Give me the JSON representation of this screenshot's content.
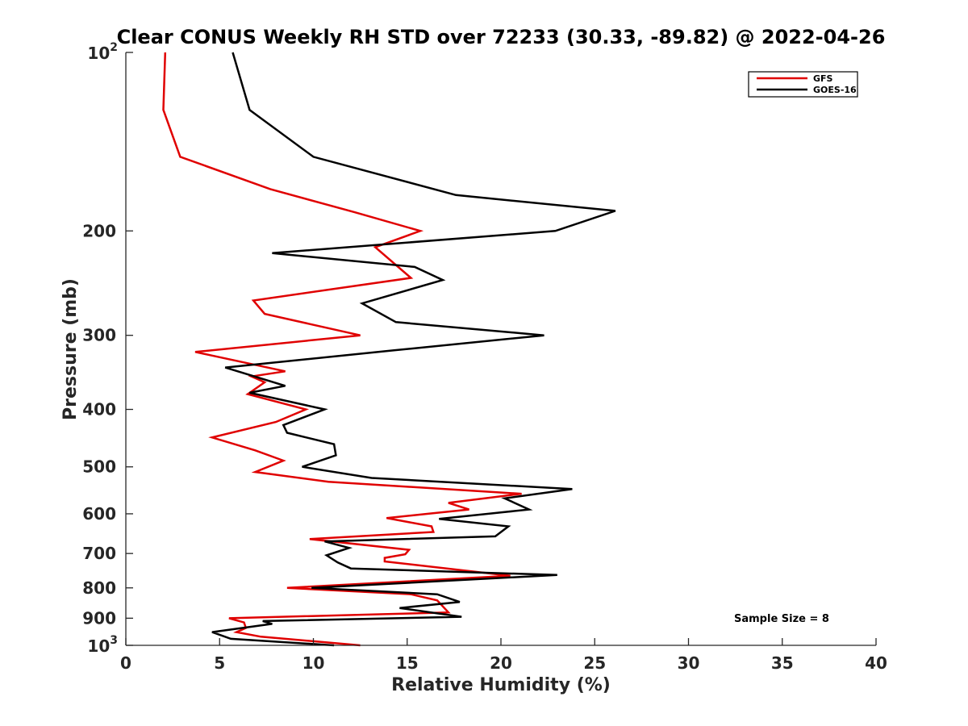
{
  "chart_data": {
    "type": "line",
    "title": "Clear CONUS Weekly RH STD over 72233 (30.33, -89.82) @ 2022-04-26",
    "xlabel": "Relative Humidity (%)",
    "ylabel": "Pressure (mb)",
    "xlim": [
      0,
      40
    ],
    "ylim": [
      100,
      1000
    ],
    "yscale": "log",
    "yreversed": true,
    "xticks": [
      0,
      5,
      10,
      15,
      20,
      25,
      30,
      35,
      40
    ],
    "xtick_labels": [
      "0",
      "5",
      "10",
      "15",
      "20",
      "25",
      "30",
      "35",
      "40"
    ],
    "yticks": [
      100,
      200,
      300,
      400,
      500,
      600,
      700,
      800,
      900,
      1000
    ],
    "ytick_labels": [
      {
        "base": "10",
        "exp": "2"
      },
      {
        "base": "200"
      },
      {
        "base": "300"
      },
      {
        "base": "400"
      },
      {
        "base": "500"
      },
      {
        "base": "600"
      },
      {
        "base": "700"
      },
      {
        "base": "800"
      },
      {
        "base": "900"
      },
      {
        "base": "10",
        "exp": "3"
      }
    ],
    "grid": false,
    "legend_position": "top-right",
    "annotation": "Sample Size = 8",
    "series": [
      {
        "name": "GFS",
        "color": "#e00000",
        "points": [
          [
            2.1,
            100
          ],
          [
            2.0,
            125
          ],
          [
            2.9,
            150
          ],
          [
            7.7,
            170
          ],
          [
            12.2,
            186
          ],
          [
            15.7,
            200
          ],
          [
            13.3,
            213
          ],
          [
            15.2,
            240
          ],
          [
            6.8,
            262
          ],
          [
            7.4,
            276
          ],
          [
            12.5,
            300
          ],
          [
            3.7,
            320
          ],
          [
            8.5,
            345
          ],
          [
            6.7,
            352
          ],
          [
            7.4,
            360
          ],
          [
            6.5,
            377
          ],
          [
            9.6,
            400
          ],
          [
            8.0,
            420
          ],
          [
            4.6,
            446
          ],
          [
            6.9,
            469
          ],
          [
            8.4,
            488
          ],
          [
            6.9,
            510
          ],
          [
            10.8,
            530
          ],
          [
            21.1,
            555
          ],
          [
            17.2,
            575
          ],
          [
            18.3,
            590
          ],
          [
            13.9,
            610
          ],
          [
            16.3,
            630
          ],
          [
            16.4,
            644
          ],
          [
            9.8,
            662
          ],
          [
            15.1,
            690
          ],
          [
            14.9,
            702
          ],
          [
            13.8,
            712
          ],
          [
            13.8,
            722
          ],
          [
            20.5,
            763
          ],
          [
            8.6,
            800
          ],
          [
            15.2,
            820
          ],
          [
            16.6,
            840
          ],
          [
            17.2,
            880
          ],
          [
            5.5,
            900
          ],
          [
            6.3,
            915
          ],
          [
            6.4,
            935
          ],
          [
            5.9,
            950
          ],
          [
            7.2,
            967
          ],
          [
            12.5,
            1000
          ]
        ]
      },
      {
        "name": "GOES-16",
        "color": "#000000",
        "points": [
          [
            5.7,
            100
          ],
          [
            6.6,
            125
          ],
          [
            10.0,
            150
          ],
          [
            17.6,
            174
          ],
          [
            26.1,
            185
          ],
          [
            22.9,
            200
          ],
          [
            7.8,
            218
          ],
          [
            15.4,
            230
          ],
          [
            16.9,
            242
          ],
          [
            12.6,
            265
          ],
          [
            14.4,
            285
          ],
          [
            22.3,
            300
          ],
          [
            14.3,
            318
          ],
          [
            5.3,
            340
          ],
          [
            8.5,
            365
          ],
          [
            6.6,
            375
          ],
          [
            10.6,
            400
          ],
          [
            8.4,
            425
          ],
          [
            8.6,
            438
          ],
          [
            11.1,
            458
          ],
          [
            11.2,
            478
          ],
          [
            9.4,
            500
          ],
          [
            13.1,
            522
          ],
          [
            23.8,
            545
          ],
          [
            20.2,
            565
          ],
          [
            21.5,
            590
          ],
          [
            16.7,
            612
          ],
          [
            20.4,
            630
          ],
          [
            19.7,
            655
          ],
          [
            10.6,
            668
          ],
          [
            11.9,
            685
          ],
          [
            10.7,
            705
          ],
          [
            11.3,
            725
          ],
          [
            12.0,
            742
          ],
          [
            23.0,
            761
          ],
          [
            9.9,
            800
          ],
          [
            16.6,
            820
          ],
          [
            17.8,
            845
          ],
          [
            14.6,
            865
          ],
          [
            17.9,
            895
          ],
          [
            7.3,
            910
          ],
          [
            7.8,
            920
          ],
          [
            4.6,
            950
          ],
          [
            5.6,
            975
          ],
          [
            11.1,
            1000
          ]
        ]
      }
    ]
  }
}
